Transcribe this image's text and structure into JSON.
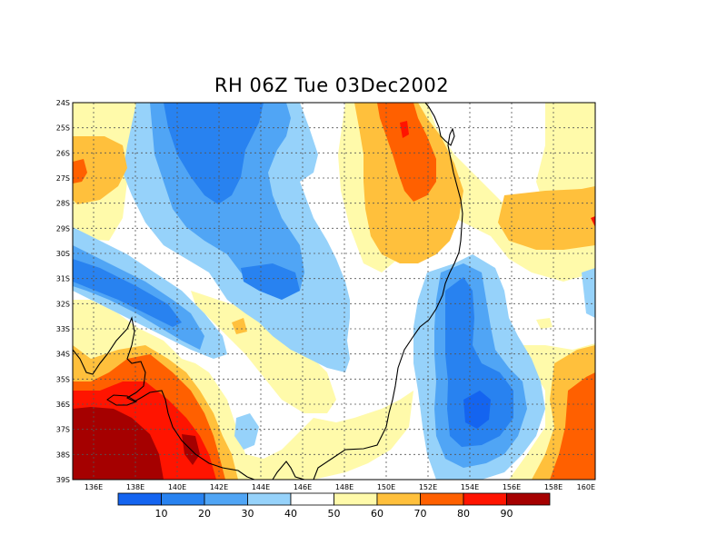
{
  "title": "RH 06Z Tue 03Dec2002",
  "map": {
    "lon_range": [
      135,
      160
    ],
    "lat_range": [
      -39,
      -24
    ],
    "grid": true,
    "lon_labels": [
      "136E",
      "138E",
      "140E",
      "142E",
      "144E",
      "146E",
      "148E",
      "150E",
      "152E",
      "154E",
      "156E",
      "158E",
      "160E"
    ],
    "lat_labels": [
      "24S",
      "25S",
      "26S",
      "27S",
      "28S",
      "29S",
      "30S",
      "31S",
      "32S",
      "33S",
      "34S",
      "35S",
      "36S",
      "37S",
      "38S",
      "39S"
    ]
  },
  "colorbar": {
    "levels": [
      "10",
      "20",
      "30",
      "40",
      "50",
      "60",
      "70",
      "80",
      "90"
    ],
    "colors": [
      "#1464f0",
      "#2882f0",
      "#50a5f5",
      "#96d2fa",
      "#ffffff",
      "#fffaaa",
      "#ffc03c",
      "#ff6000",
      "#ff1400",
      "#a50000"
    ]
  },
  "palette": {
    "rh_0_10": "#1464f0",
    "rh_10_20": "#2882f0",
    "rh_20_30": "#50a5f5",
    "rh_30_40": "#96d2fa",
    "rh_40_50": "#ffffff",
    "rh_50_60": "#fffaaa",
    "rh_60_70": "#ffc03c",
    "rh_70_80": "#ff6000",
    "rh_80_90": "#ff1400",
    "rh_90_100": "#a50000"
  }
}
